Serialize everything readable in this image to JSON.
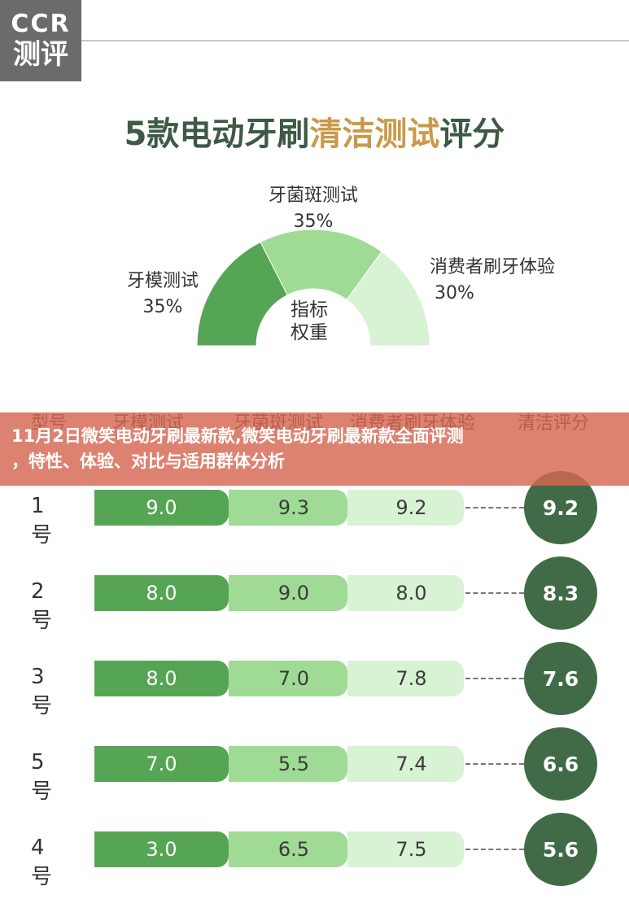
{
  "logo": {
    "line1": "CCR",
    "line2": "测评"
  },
  "title": {
    "part1": "5款电动牙刷",
    "highlight": "清洁测试",
    "part2": "评分"
  },
  "banner": {
    "line1": "11月2日微笑电动牙刷最新款,微笑电动牙刷最新款全面评测",
    "line2": "，特性、体验、对比与适用群体分析"
  },
  "colors": {
    "dark_green": "#406b46",
    "mid_green": "#56a554",
    "light_green": "#9fdb94",
    "pale_green": "#d8f2d4",
    "title_gold": "#c99a4a"
  },
  "chart_data": [
    {
      "type": "pie",
      "center_label": [
        "指标",
        "权重"
      ],
      "slices": [
        {
          "name": "牙模测试",
          "value": 35,
          "label": "35%"
        },
        {
          "name": "牙菌斑测试",
          "value": 35,
          "label": "35%"
        },
        {
          "name": "消费者刷牙体验",
          "value": 30,
          "label": "30%"
        }
      ]
    },
    {
      "type": "table",
      "columns": [
        "型号",
        "牙模测试",
        "牙菌斑测试",
        "消费者刷牙体验",
        "清洁评分"
      ],
      "rows": [
        {
          "model": "1号",
          "values": [
            "9.0",
            "9.3",
            "9.2"
          ],
          "score": "9.2"
        },
        {
          "model": "2号",
          "values": [
            "8.0",
            "9.0",
            "8.0"
          ],
          "score": "8.3"
        },
        {
          "model": "3号",
          "values": [
            "8.0",
            "7.0",
            "7.8"
          ],
          "score": "7.6"
        },
        {
          "model": "5号",
          "values": [
            "7.0",
            "5.5",
            "7.4"
          ],
          "score": "6.6"
        },
        {
          "model": "4号",
          "values": [
            "3.0",
            "6.5",
            "7.5"
          ],
          "score": "5.6"
        }
      ]
    }
  ]
}
